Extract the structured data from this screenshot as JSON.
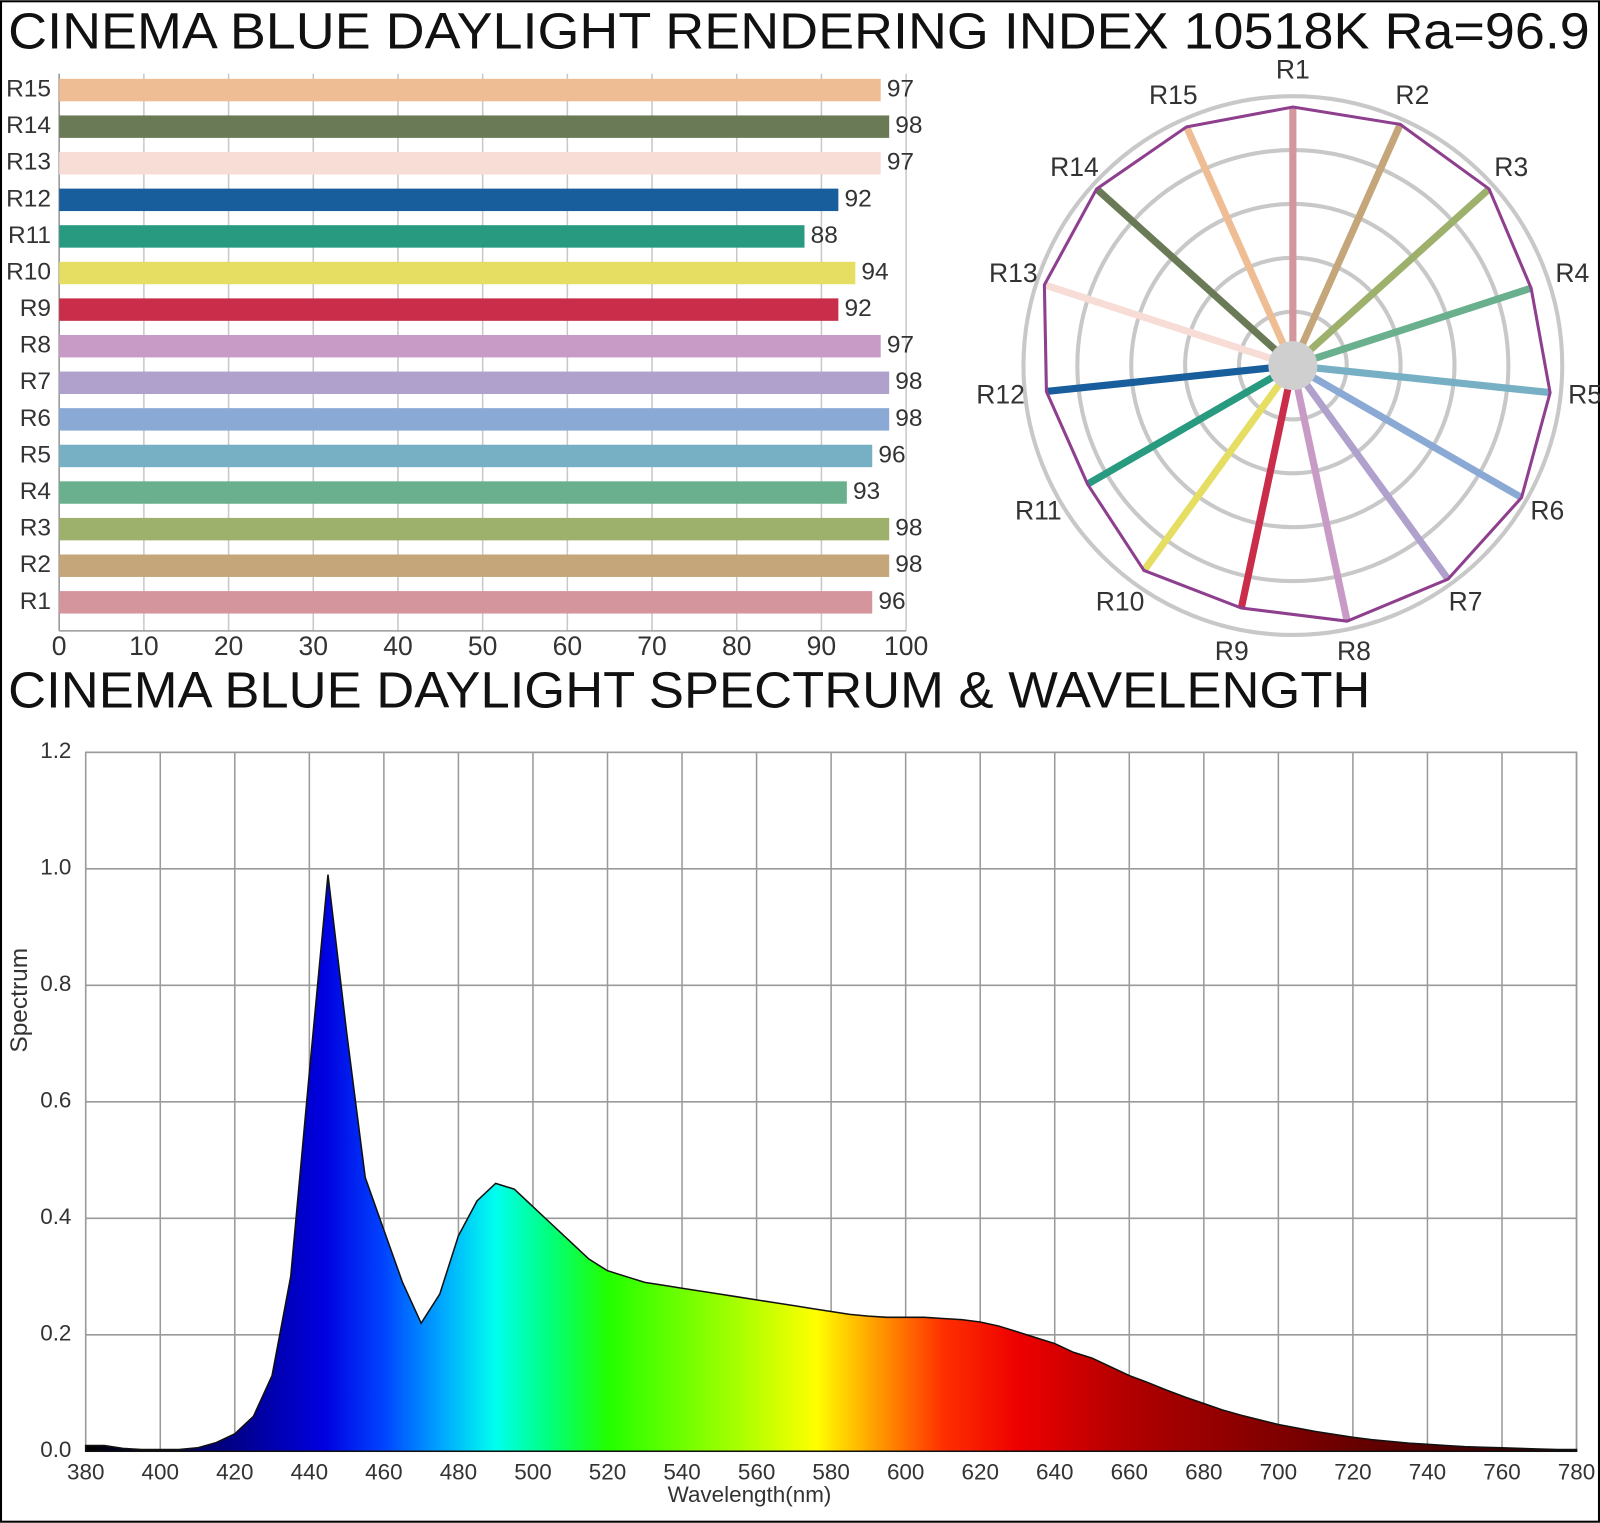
{
  "chart_data": [
    {
      "type": "bar",
      "orientation": "horizontal",
      "title": "CINEMA BLUE DAYLIGHT RENDERING INDEX 10518K  Ra=96.9",
      "categories": [
        "R1",
        "R2",
        "R3",
        "R4",
        "R5",
        "R6",
        "R7",
        "R8",
        "R9",
        "R10",
        "R11",
        "R12",
        "R13",
        "R14",
        "R15"
      ],
      "values": [
        96,
        98,
        98,
        93,
        96,
        98,
        98,
        97,
        92,
        94,
        88,
        92,
        97,
        98,
        97
      ],
      "colors": [
        "#d4959c",
        "#c4a67a",
        "#9db06c",
        "#6ab08e",
        "#77afc4",
        "#8aa9d4",
        "#b0a0cc",
        "#c89bc7",
        "#c92d4a",
        "#e5de63",
        "#279a80",
        "#195e9c",
        "#f8ddd6",
        "#6a7a56",
        "#eebd93"
      ],
      "xlim": [
        0,
        100
      ],
      "xticks": [
        0,
        10,
        20,
        30,
        40,
        50,
        60,
        70,
        80,
        90,
        100
      ],
      "grid": true
    },
    {
      "type": "radar",
      "categories": [
        "R1",
        "R2",
        "R3",
        "R4",
        "R5",
        "R6",
        "R7",
        "R8",
        "R9",
        "R10",
        "R11",
        "R12",
        "R13",
        "R14",
        "R15"
      ],
      "values": [
        96,
        98,
        98,
        93,
        96,
        98,
        98,
        97,
        92,
        94,
        88,
        92,
        97,
        98,
        97
      ],
      "colors": [
        "#d4959c",
        "#c4a67a",
        "#9db06c",
        "#6ab08e",
        "#77afc4",
        "#8aa9d4",
        "#b0a0cc",
        "#c89bc7",
        "#c92d4a",
        "#e5de63",
        "#279a80",
        "#195e9c",
        "#f8ddd6",
        "#6a7a56",
        "#eebd93"
      ],
      "color": "#8e3f8e",
      "rlim": [
        0,
        100
      ],
      "rticks": [
        20,
        40,
        60,
        80,
        100
      ],
      "grid": true
    },
    {
      "type": "area",
      "title": "CINEMA BLUE DAYLIGHT SPECTRUM & WAVELENGTH",
      "xlabel": "Wavelength(nm)",
      "ylabel": "Spectrum",
      "x": [
        380,
        385,
        390,
        395,
        400,
        405,
        410,
        415,
        420,
        425,
        430,
        435,
        440,
        445,
        450,
        455,
        460,
        465,
        470,
        475,
        480,
        485,
        490,
        495,
        500,
        505,
        510,
        515,
        520,
        525,
        530,
        535,
        540,
        545,
        550,
        555,
        560,
        565,
        570,
        575,
        580,
        585,
        590,
        595,
        600,
        605,
        610,
        615,
        620,
        625,
        630,
        635,
        640,
        645,
        650,
        655,
        660,
        665,
        670,
        675,
        680,
        685,
        690,
        695,
        700,
        705,
        710,
        715,
        720,
        725,
        730,
        735,
        740,
        745,
        750,
        755,
        760,
        765,
        770,
        775,
        780
      ],
      "values": [
        0.01,
        0.01,
        0.005,
        0.003,
        0.003,
        0.003,
        0.006,
        0.015,
        0.03,
        0.06,
        0.13,
        0.3,
        0.65,
        0.99,
        0.72,
        0.47,
        0.38,
        0.29,
        0.22,
        0.27,
        0.37,
        0.43,
        0.46,
        0.45,
        0.42,
        0.39,
        0.36,
        0.33,
        0.31,
        0.3,
        0.29,
        0.285,
        0.28,
        0.275,
        0.27,
        0.265,
        0.26,
        0.255,
        0.25,
        0.245,
        0.24,
        0.235,
        0.232,
        0.23,
        0.23,
        0.23,
        0.228,
        0.226,
        0.222,
        0.215,
        0.205,
        0.195,
        0.185,
        0.17,
        0.16,
        0.145,
        0.13,
        0.118,
        0.105,
        0.093,
        0.082,
        0.071,
        0.062,
        0.054,
        0.046,
        0.04,
        0.034,
        0.029,
        0.024,
        0.02,
        0.017,
        0.014,
        0.012,
        0.01,
        0.008,
        0.007,
        0.006,
        0.005,
        0.004,
        0.003,
        0.003
      ],
      "xlim": [
        380,
        780
      ],
      "xticks": [
        380,
        400,
        420,
        440,
        460,
        480,
        500,
        520,
        540,
        560,
        580,
        600,
        620,
        640,
        660,
        680,
        700,
        720,
        740,
        760,
        780
      ],
      "ylim": [
        0,
        1.2
      ],
      "yticks": [
        {
          "value": 0,
          "label": "0.0"
        },
        0.2,
        0.4,
        0.6,
        0.8,
        {
          "value": 1,
          "label": "1.0"
        },
        1.2
      ],
      "grid": true
    }
  ]
}
